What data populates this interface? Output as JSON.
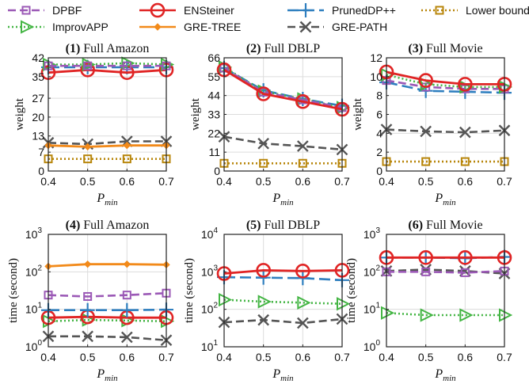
{
  "legend": [
    {
      "name": "DPBF",
      "key": "dpbf"
    },
    {
      "name": "ENSteiner",
      "key": "ens"
    },
    {
      "name": "PrunedDP++",
      "key": "pdp"
    },
    {
      "name": "Lower bound",
      "key": "lb"
    },
    {
      "name": "ImprovAPP",
      "key": "imp"
    },
    {
      "name": "GRE-TREE",
      "key": "gt"
    },
    {
      "name": "GRE-PATH",
      "key": "gp"
    }
  ],
  "styles": {
    "dpbf": {
      "color": "#9b59b6",
      "dash": "10,5",
      "marker": "square"
    },
    "ens": {
      "color": "#e02424",
      "dash": "",
      "marker": "circle"
    },
    "pdp": {
      "color": "#2f7fbf",
      "dash": "14,6",
      "marker": "plus"
    },
    "lb": {
      "color": "#b8860b",
      "dash": "2,3",
      "marker": "square"
    },
    "imp": {
      "color": "#44b544",
      "dash": "2,3",
      "marker": "triangle"
    },
    "gt": {
      "color": "#f28a1a",
      "dash": "",
      "marker": "diamond"
    },
    "gp": {
      "color": "#555555",
      "dash": "10,5",
      "marker": "x"
    }
  },
  "chart_data": [
    {
      "type": "line",
      "title": "(1) Full Amazon",
      "xlabel": "P",
      "xlabel_sub": "min",
      "ylabel": "weight",
      "x": [
        0.4,
        0.5,
        0.6,
        0.7
      ],
      "xticks": [
        "0.4",
        "0.5",
        "0.6",
        "0.7"
      ],
      "xlim": [
        0.4,
        0.7
      ],
      "yscale": "linear",
      "ylim": [
        0,
        42
      ],
      "yticks": [
        0,
        7,
        13,
        20,
        27,
        35,
        42
      ],
      "yticklabels": [
        "0",
        "7",
        "13",
        "20",
        "27",
        "35",
        "42"
      ],
      "grid": true,
      "series": [
        {
          "key": "lb",
          "values": [
            4.5,
            4.5,
            4.5,
            4.5
          ]
        },
        {
          "key": "gp",
          "values": [
            10.5,
            10.0,
            11.0,
            11.0
          ]
        },
        {
          "key": "gt",
          "values": [
            9.5,
            9.0,
            9.5,
            9.5
          ]
        },
        {
          "key": "pdp",
          "values": [
            38.5,
            38.5,
            38.5,
            38.5
          ]
        },
        {
          "key": "ens",
          "values": [
            36.5,
            37.5,
            36.5,
            37.5
          ]
        },
        {
          "key": "imp",
          "values": [
            39.5,
            39.5,
            40.0,
            39.5
          ]
        },
        {
          "key": "dpbf",
          "values": [
            39.0,
            39.0,
            39.0,
            39.0
          ]
        }
      ]
    },
    {
      "type": "line",
      "title": "(2) Full DBLP",
      "xlabel": "P",
      "xlabel_sub": "min",
      "ylabel": "weight",
      "x": [
        0.4,
        0.5,
        0.6,
        0.7
      ],
      "xticks": [
        "0.4",
        "0.5",
        "0.6",
        "0.7"
      ],
      "xlim": [
        0.4,
        0.7
      ],
      "yscale": "linear",
      "ylim": [
        0,
        66
      ],
      "yticks": [
        0,
        11,
        22,
        33,
        44,
        55,
        66
      ],
      "yticklabels": [
        "0",
        "11",
        "22",
        "33",
        "44",
        "55",
        "66"
      ],
      "grid": true,
      "series": [
        {
          "key": "lb",
          "values": [
            4.5,
            4.5,
            4.5,
            4.5
          ]
        },
        {
          "key": "gp",
          "values": [
            20.0,
            16.0,
            14.5,
            12.5
          ]
        },
        {
          "key": "pdp",
          "values": [
            60.0,
            47.0,
            42.0,
            38.0
          ]
        },
        {
          "key": "imp",
          "values": [
            60.5,
            46.5,
            42.0,
            37.0
          ]
        },
        {
          "key": "dpbf",
          "values": [
            60.0,
            46.0,
            41.5,
            37.0
          ]
        },
        {
          "key": "ens",
          "values": [
            59.0,
            45.0,
            40.5,
            36.0
          ]
        }
      ]
    },
    {
      "type": "line",
      "title": "(3) Full Movie",
      "xlabel": "P",
      "xlabel_sub": "min",
      "ylabel": "weight",
      "x": [
        0.4,
        0.5,
        0.6,
        0.7
      ],
      "xticks": [
        "0.4",
        "0.5",
        "0.6",
        "0.7"
      ],
      "xlim": [
        0.4,
        0.7
      ],
      "yscale": "linear",
      "ylim": [
        0,
        12
      ],
      "yticks": [
        0,
        2,
        4,
        6,
        8,
        10,
        12
      ],
      "yticklabels": [
        "0",
        "2",
        "4",
        "6",
        "8",
        "10",
        "12"
      ],
      "grid": true,
      "series": [
        {
          "key": "lb",
          "values": [
            1.0,
            1.0,
            1.0,
            1.0
          ]
        },
        {
          "key": "gp",
          "values": [
            4.4,
            4.2,
            4.1,
            4.3
          ]
        },
        {
          "key": "pdp",
          "values": [
            9.4,
            8.5,
            8.4,
            8.3
          ]
        },
        {
          "key": "dpbf",
          "values": [
            9.6,
            8.9,
            8.7,
            8.7
          ]
        },
        {
          "key": "imp",
          "values": [
            10.2,
            9.2,
            8.9,
            8.9
          ]
        },
        {
          "key": "ens",
          "values": [
            10.5,
            9.6,
            9.2,
            9.2
          ]
        }
      ]
    },
    {
      "type": "line",
      "title": "(4) Full Amazon",
      "xlabel": "P",
      "xlabel_sub": "min",
      "ylabel": "time (second)",
      "x": [
        0.4,
        0.5,
        0.6,
        0.7
      ],
      "xticks": [
        "0.4",
        "0.5",
        "0.6",
        "0.7"
      ],
      "xlim": [
        0.4,
        0.7
      ],
      "yscale": "log",
      "ylim": [
        1,
        1000
      ],
      "yticks": [
        1,
        10,
        100,
        1000
      ],
      "ytickexp": [
        "0",
        "1",
        "2",
        "3"
      ],
      "grid": true,
      "series": [
        {
          "key": "gp",
          "values": [
            1.9,
            1.9,
            1.8,
            1.5
          ]
        },
        {
          "key": "imp",
          "values": [
            4.8,
            5.2,
            5.0,
            4.8
          ]
        },
        {
          "key": "ens",
          "values": [
            6.0,
            6.3,
            6.0,
            6.0
          ]
        },
        {
          "key": "pdp",
          "values": [
            9.5,
            9.5,
            9.5,
            9.8
          ]
        },
        {
          "key": "dpbf",
          "values": [
            24,
            22,
            24,
            27
          ]
        },
        {
          "key": "gt",
          "values": [
            140,
            160,
            160,
            155
          ]
        }
      ]
    },
    {
      "type": "line",
      "title": "(5) Full DBLP",
      "xlabel": "P",
      "xlabel_sub": "min",
      "ylabel": "time (second)",
      "x": [
        0.4,
        0.5,
        0.6,
        0.7
      ],
      "xticks": [
        "0.4",
        "0.5",
        "0.6",
        "0.7"
      ],
      "xlim": [
        0.4,
        0.7
      ],
      "yscale": "log",
      "ylim": [
        10,
        10000
      ],
      "yticks": [
        10,
        100,
        1000,
        10000
      ],
      "ytickexp": [
        "1",
        "2",
        "3",
        "4"
      ],
      "grid": true,
      "series": [
        {
          "key": "gp",
          "values": [
            45,
            52,
            43,
            55
          ]
        },
        {
          "key": "imp",
          "values": [
            180,
            160,
            150,
            140
          ]
        },
        {
          "key": "pdp",
          "values": [
            720,
            700,
            680,
            600
          ]
        },
        {
          "key": "ens",
          "values": [
            900,
            1100,
            1050,
            1100
          ]
        }
      ]
    },
    {
      "type": "line",
      "title": "(6) Full Movie",
      "xlabel": "P",
      "xlabel_sub": "min",
      "ylabel": "time (second)",
      "x": [
        0.4,
        0.5,
        0.6,
        0.7
      ],
      "xticks": [
        "0.4",
        "0.5",
        "0.6",
        "0.7"
      ],
      "xlim": [
        0.4,
        0.7
      ],
      "yscale": "log",
      "ylim": [
        1,
        1000
      ],
      "yticks": [
        1,
        10,
        100,
        1000
      ],
      "ytickexp": [
        "0",
        "1",
        "2",
        "3"
      ],
      "grid": true,
      "series": [
        {
          "key": "imp",
          "values": [
            8.0,
            7.0,
            7.0,
            7.0
          ]
        },
        {
          "key": "gp",
          "values": [
            105,
            115,
            105,
            90
          ]
        },
        {
          "key": "dpbf",
          "values": [
            100,
            100,
            95,
            105
          ]
        },
        {
          "key": "pdp",
          "values": [
            240,
            240,
            230,
            250
          ]
        },
        {
          "key": "ens",
          "values": [
            240,
            240,
            240,
            240
          ]
        }
      ]
    }
  ]
}
